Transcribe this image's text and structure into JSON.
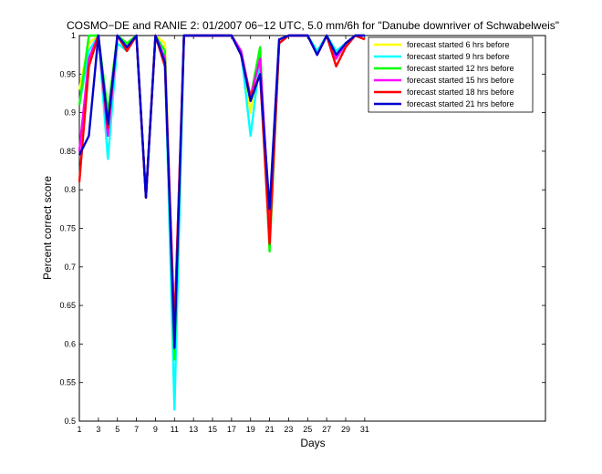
{
  "chart_data": {
    "type": "line",
    "title": "COSMO−DE and RANIE 2: 01/2007 06−12 UTC, 5.0 mm/6h for \"Danube downriver of Schwabelweis\"",
    "xlabel": "Days",
    "ylabel": "Percent correct score",
    "xlim": [
      1,
      50
    ],
    "ylim": [
      0.5,
      1.0
    ],
    "x_ticks": [
      1,
      3,
      5,
      7,
      9,
      11,
      13,
      15,
      17,
      19,
      21,
      23,
      25,
      27,
      29,
      31
    ],
    "y_ticks": [
      0.5,
      0.55,
      0.6,
      0.65,
      0.7,
      0.75,
      0.8,
      0.85,
      0.9,
      0.95,
      1.0
    ],
    "y_tick_labels": [
      "0.5",
      "0.55",
      "0.6",
      "0.65",
      "0.7",
      "0.75",
      "0.8",
      "0.85",
      "0.9",
      "0.95",
      "1"
    ],
    "legend_position": "top-right",
    "grid": false,
    "x": [
      1,
      2,
      3,
      4,
      5,
      6,
      7,
      8,
      9,
      10,
      11,
      12,
      13,
      14,
      15,
      16,
      17,
      18,
      19,
      20,
      21,
      22,
      23,
      24,
      25,
      26,
      27,
      28,
      29,
      30,
      31
    ],
    "series": [
      {
        "name": "forecast started 6 hrs before",
        "color": "#ffff00",
        "values": [
          0.93,
          0.99,
          1.0,
          0.88,
          1.0,
          0.99,
          1.0,
          0.79,
          1.0,
          0.99,
          0.6,
          1.0,
          1.0,
          1.0,
          1.0,
          1.0,
          1.0,
          0.98,
          0.9,
          0.98,
          0.73,
          0.99,
          1.0,
          1.0,
          1.0,
          0.98,
          1.0,
          0.98,
          0.99,
          1.0,
          1.0
        ]
      },
      {
        "name": "forecast started 9 hrs before",
        "color": "#00ffff",
        "values": [
          0.91,
          0.98,
          1.0,
          0.84,
          0.99,
          0.98,
          1.0,
          0.79,
          1.0,
          0.97,
          0.515,
          1.0,
          1.0,
          1.0,
          1.0,
          1.0,
          1.0,
          0.98,
          0.87,
          0.97,
          0.73,
          0.99,
          1.0,
          1.0,
          1.0,
          0.98,
          1.0,
          0.98,
          0.99,
          1.0,
          1.0
        ]
      },
      {
        "name": "forecast started 12 hrs before",
        "color": "#00ff00",
        "values": [
          0.91,
          1.0,
          1.0,
          0.9,
          1.0,
          0.99,
          1.0,
          0.79,
          1.0,
          0.98,
          0.58,
          1.0,
          1.0,
          1.0,
          1.0,
          1.0,
          1.0,
          0.98,
          0.92,
          0.985,
          0.72,
          0.99,
          1.0,
          1.0,
          1.0,
          0.975,
          1.0,
          0.97,
          0.99,
          1.0,
          1.0
        ]
      },
      {
        "name": "forecast started 15 hrs before",
        "color": "#ff00ff",
        "values": [
          0.85,
          0.97,
          1.0,
          0.87,
          1.0,
          0.98,
          1.0,
          0.79,
          1.0,
          0.97,
          0.62,
          1.0,
          1.0,
          1.0,
          1.0,
          1.0,
          1.0,
          0.98,
          0.92,
          0.97,
          0.76,
          0.99,
          1.0,
          1.0,
          1.0,
          0.975,
          1.0,
          0.97,
          0.99,
          1.0,
          1.0
        ]
      },
      {
        "name": "forecast started 18 hrs before",
        "color": "#ff0000",
        "values": [
          0.81,
          0.96,
          1.0,
          0.88,
          1.0,
          0.98,
          1.0,
          0.79,
          1.0,
          0.96,
          0.62,
          1.0,
          1.0,
          1.0,
          1.0,
          1.0,
          1.0,
          0.975,
          0.92,
          0.95,
          0.73,
          0.99,
          1.0,
          1.0,
          1.0,
          0.975,
          1.0,
          0.96,
          0.985,
          1.0,
          0.995
        ]
      },
      {
        "name": "forecast started 21 hrs before",
        "color": "#0000cd",
        "values": [
          0.845,
          0.87,
          1.0,
          0.885,
          1.0,
          0.985,
          1.0,
          0.79,
          1.0,
          0.965,
          0.595,
          1.0,
          1.0,
          1.0,
          1.0,
          1.0,
          1.0,
          0.975,
          0.915,
          0.95,
          0.775,
          0.995,
          1.0,
          1.0,
          1.0,
          0.975,
          1.0,
          0.975,
          0.99,
          1.0,
          1.0
        ]
      }
    ]
  }
}
